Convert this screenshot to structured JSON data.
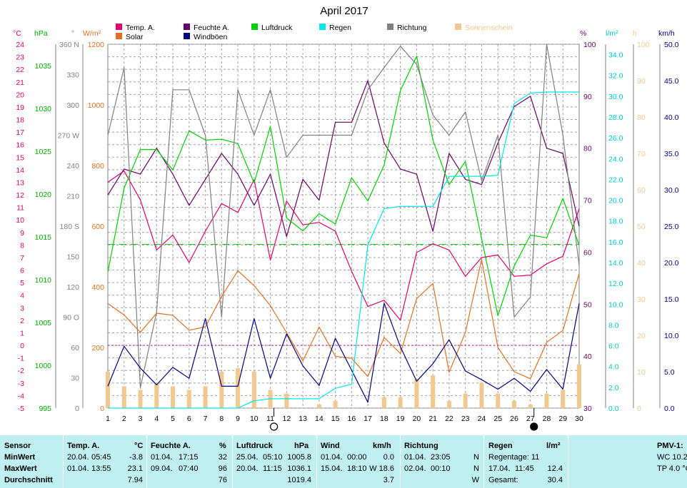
{
  "title": "April 2017",
  "legend": [
    {
      "label": "Temp. A.",
      "color": "#e0006e"
    },
    {
      "label": "Feuchte A.",
      "color": "#660066"
    },
    {
      "label": "Luftdruck",
      "color": "#00d000"
    },
    {
      "label": "Regen",
      "color": "#00e8e8"
    },
    {
      "label": "Richtung",
      "color": "#808080"
    },
    {
      "label": "Sonnenschein",
      "color": "#f0c890"
    },
    {
      "label": "Solar",
      "color": "#e07020"
    },
    {
      "label": "Windböen",
      "color": "#000080"
    }
  ],
  "axis_units": {
    "temp": "°C",
    "pressure": "hPa",
    "direction": "°",
    "solar": "W/m²",
    "humidity": "%",
    "rain": "l/m²",
    "sun": "h",
    "wind": "km/h"
  },
  "moon_days": [
    11,
    27
  ],
  "chart_data": {
    "type": "line",
    "title": "April 2017",
    "x": [
      1,
      2,
      3,
      4,
      5,
      6,
      7,
      8,
      9,
      10,
      11,
      12,
      13,
      14,
      15,
      16,
      17,
      18,
      19,
      20,
      21,
      22,
      23,
      24,
      25,
      26,
      27,
      28,
      29,
      30
    ],
    "xlim": [
      1,
      30
    ],
    "axes": {
      "temp": {
        "ylim": [
          -5,
          24
        ],
        "ticks": [
          24.0,
          23.0,
          22.0,
          21.0,
          20.0,
          19.0,
          18.0,
          17.0,
          16.0,
          15.0,
          14.0,
          13.0,
          12.0,
          11.0,
          10.0,
          9.0,
          8.0,
          7.0,
          6.0,
          5.0,
          4.0,
          3.0,
          2.0,
          1.0,
          0.0,
          -1.0,
          -2.0,
          -3.0,
          -4.0,
          -5.0
        ]
      },
      "pressure": {
        "ylim": [
          995,
          1037.5
        ],
        "ticks": [
          1035,
          1030,
          1025,
          1020,
          1015,
          1010,
          1005,
          1000,
          995
        ]
      },
      "direction": {
        "ylim": [
          0,
          360
        ],
        "ticks": [
          "360 N",
          "330",
          "300",
          "270 W",
          "240",
          "210",
          "180 S",
          "150",
          "120",
          "90 O",
          "60",
          "30",
          "0"
        ]
      },
      "solar": {
        "ylim": [
          0,
          1200
        ],
        "ticks": [
          1200,
          1000,
          800,
          600,
          400,
          200,
          0
        ]
      },
      "humidity": {
        "ylim": [
          30,
          100
        ],
        "ticks": [
          100,
          90,
          80,
          70,
          60,
          50,
          40,
          30
        ]
      },
      "rain": {
        "ylim": [
          0,
          35
        ],
        "ticks": [
          "34.0",
          "32.0",
          "30.0",
          "28.0",
          "26.0",
          "24.0",
          "22.0",
          "20.0",
          "18.0",
          "16.0",
          "14.0",
          "12.0",
          "10.0",
          "8.0",
          "6.0",
          "4.0",
          "2.0",
          "0.0"
        ]
      },
      "sun": {
        "ylim": [
          0,
          100
        ],
        "ticks": [
          100,
          90,
          80,
          70,
          60,
          50,
          40,
          30,
          20,
          10,
          0
        ]
      },
      "wind": {
        "ylim": [
          0,
          50
        ],
        "ticks": [
          "50.0",
          "45.0",
          "40.0",
          "35.0",
          "30.0",
          "25.0",
          "20.0",
          "15.0",
          "10.0",
          "5.0",
          "0.0"
        ]
      }
    },
    "series": [
      {
        "name": "Temp. A.",
        "axis": "temp",
        "color": "#e0006e",
        "values": [
          13.0,
          13.9,
          11.6,
          7.6,
          8.8,
          6.6,
          9.1,
          11.3,
          10.6,
          13.2,
          6.8,
          11.5,
          9.6,
          9.8,
          9.1,
          5.9,
          3.1,
          3.6,
          2.0,
          7.4,
          8.1,
          7.6,
          5.5,
          7.0,
          7.2,
          5.5,
          5.6,
          6.5,
          7.1,
          10.9
        ]
      },
      {
        "name": "Feuchte A.",
        "axis": "humidity",
        "color": "#660066",
        "values": [
          71,
          76,
          75,
          80,
          75,
          69,
          74,
          79,
          75,
          69,
          75,
          63,
          74,
          70,
          85,
          85,
          93,
          81,
          76,
          75,
          64,
          79,
          74,
          73,
          81,
          88,
          90,
          80,
          79,
          65
        ]
      },
      {
        "name": "Luftdruck",
        "axis": "pressure",
        "color": "#00d000",
        "values": [
          1010.9,
          1020.7,
          1025.2,
          1025.2,
          1022.8,
          1027.4,
          1026.3,
          1026.4,
          1025.9,
          1021.3,
          1027.9,
          1017.2,
          1015.7,
          1017.7,
          1016.5,
          1021.9,
          1019.2,
          1023.4,
          1032.1,
          1036.1,
          1026.3,
          1021.1,
          1023.8,
          1014.8,
          1005.8,
          1011.6,
          1015.2,
          1014.9,
          1019.5,
          1014.0
        ]
      },
      {
        "name": "Richtung",
        "axis": "direction",
        "color": "#808080",
        "values": [
          270,
          337,
          20,
          95,
          315,
          315,
          270,
          90,
          315,
          270,
          315,
          248,
          270,
          270,
          270,
          270,
          315,
          337,
          358,
          340,
          290,
          270,
          293,
          225,
          270,
          90,
          110,
          360,
          270,
          141
        ]
      },
      {
        "name": "Solar",
        "axis": "solar",
        "color": "#e07020",
        "values": [
          345,
          307,
          250,
          313,
          306,
          257,
          268,
          368,
          453,
          404,
          338,
          249,
          156,
          267,
          171,
          164,
          104,
          233,
          180,
          361,
          411,
          118,
          250,
          490,
          200,
          120,
          97,
          217,
          256,
          444
        ]
      },
      {
        "name": "Windböen",
        "axis": "wind",
        "color": "#000080",
        "values": [
          3.0,
          8.5,
          5.5,
          3.2,
          5.6,
          4.1,
          12.3,
          3.0,
          3.0,
          12.3,
          4.1,
          10.2,
          5.8,
          3.1,
          9.6,
          5.2,
          0.8,
          14.4,
          8.4,
          3.7,
          6.1,
          9.4,
          5.1,
          3.9,
          2.6,
          4.1,
          2.3,
          5.3,
          2.6,
          14.4
        ]
      },
      {
        "name": "Regen",
        "axis": "rain",
        "color": "#00e8e8",
        "values": [
          0,
          0,
          0,
          0,
          0,
          0,
          0,
          0,
          0,
          0.7,
          0.9,
          0.9,
          0.9,
          0.9,
          1.9,
          2.3,
          15.7,
          19.2,
          19.4,
          19.4,
          19.4,
          22.3,
          22.3,
          22.3,
          22.4,
          29.3,
          30.3,
          30.4,
          30.4,
          30.4
        ]
      },
      {
        "name": "Sonnenschein",
        "axis": "sun",
        "color": "#f0c890",
        "type": "bar",
        "values": [
          10,
          6,
          5,
          7,
          6,
          5,
          6,
          10,
          11,
          10,
          5,
          4,
          0,
          1,
          2,
          0,
          0,
          3,
          3,
          8,
          9,
          2,
          4,
          7,
          4,
          2,
          1,
          4,
          5,
          12
        ]
      }
    ],
    "reference_line": {
      "axis": "humidity",
      "value": 61.5,
      "color": "#00d000"
    },
    "zero_line": {
      "axis": "temp",
      "value": 0,
      "color": "#e0006e"
    },
    "grid": true
  },
  "summary": {
    "row_labels": [
      "Sensor",
      "MinWert",
      "MaxWert",
      "Durchschnitt"
    ],
    "temp": {
      "title": "Temp. A.",
      "unit": "°C",
      "min_date": "20.04.",
      "min_time": "05:45",
      "min_val": "-3.8",
      "max_date": "01.04.",
      "max_time": "13:55",
      "max_val": "23.1",
      "avg": "7.94"
    },
    "hum": {
      "title": "Feuchte A.",
      "unit": "%",
      "min_date": "01.04.",
      "min_time": "17:15",
      "min_val": "32",
      "max_date": "09.04.",
      "max_time": "07:40",
      "max_val": "96",
      "avg": "76"
    },
    "press": {
      "title": "Luftdruck",
      "unit": "hPa",
      "min_date": "25.04.",
      "min_time": "05:10",
      "min_val": "1005.8",
      "max_date": "20.04.",
      "max_time": "11:15",
      "max_val": "1036.1",
      "avg": "1019.4"
    },
    "wind": {
      "title": "Wind",
      "unit": "km/h",
      "min_date": "01.04.",
      "min_time": "00:00",
      "min_val": "0.0",
      "max_date": "15.04.",
      "max_time": "18:10",
      "max_val": "W 18.6",
      "avg": "3.7"
    },
    "dir": {
      "title": "Richtung",
      "min_date": "01.04.",
      "min_time": "23:05",
      "min_val": "N",
      "max_date": "02.04.",
      "max_time": "00:10",
      "max_val": "N",
      "avg": "W"
    },
    "rain": {
      "title": "Regen",
      "unit": "l/m²",
      "days": "Regentage: 11",
      "max_date": "17.04.",
      "max_time": "11:45",
      "max_val": "12.4",
      "total_label": "Gesamt:",
      "total": "30.4"
    },
    "pmv": {
      "title": "PMV-1:",
      "line1": "WC 10.2",
      "line2": "TP 4.0 °C"
    }
  }
}
